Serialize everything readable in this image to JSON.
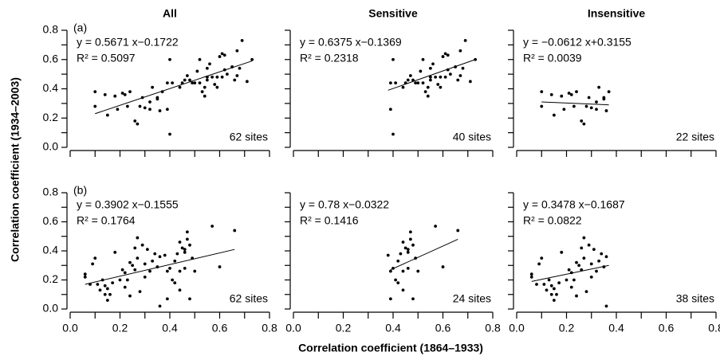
{
  "figure": {
    "xlabel": "Correlation coefficient (1864–1933)",
    "ylabel": "Correlation coefficient (1934–2003)"
  },
  "chart_data": [
    {
      "type": "scatter",
      "title": "All",
      "panel_label": "(a)",
      "color": "#000000",
      "x": [
        0.1,
        0.1,
        0.14,
        0.15,
        0.18,
        0.19,
        0.21,
        0.22,
        0.23,
        0.24,
        0.26,
        0.27,
        0.29,
        0.28,
        0.3,
        0.32,
        0.32,
        0.33,
        0.35,
        0.35,
        0.37,
        0.36,
        0.4,
        0.39,
        0.39,
        0.4,
        0.41,
        0.44,
        0.45,
        0.46,
        0.47,
        0.48,
        0.49,
        0.5,
        0.51,
        0.52,
        0.52,
        0.53,
        0.54,
        0.54,
        0.55,
        0.55,
        0.55,
        0.56,
        0.57,
        0.58,
        0.59,
        0.59,
        0.6,
        0.61,
        0.61,
        0.62,
        0.62,
        0.63,
        0.65,
        0.66,
        0.67,
        0.67,
        0.68,
        0.69,
        0.71,
        0.73
      ],
      "y": [
        0.38,
        0.28,
        0.36,
        0.22,
        0.35,
        0.26,
        0.37,
        0.36,
        0.28,
        0.38,
        0.18,
        0.16,
        0.34,
        0.28,
        0.27,
        0.31,
        0.26,
        0.41,
        0.33,
        0.34,
        0.38,
        0.25,
        0.09,
        0.26,
        0.44,
        0.6,
        0.44,
        0.41,
        0.44,
        0.46,
        0.49,
        0.46,
        0.44,
        0.44,
        0.52,
        0.6,
        0.44,
        0.38,
        0.41,
        0.35,
        0.54,
        0.48,
        0.46,
        0.57,
        0.48,
        0.43,
        0.41,
        0.48,
        0.62,
        0.64,
        0.48,
        0.53,
        0.63,
        0.5,
        0.55,
        0.46,
        0.66,
        0.49,
        0.54,
        0.73,
        0.45,
        0.6
      ],
      "fit": {
        "x": [
          0.1,
          0.73
        ],
        "y": [
          0.23,
          0.59
        ]
      },
      "equation": "y = 0.5671 x−0.1722",
      "r_squared": "R² = 0.5097",
      "annotation": "62 sites",
      "xlim": [
        0,
        0.8
      ],
      "ylim": [
        0,
        0.8
      ],
      "xticks": [
        0,
        0.2,
        0.4,
        0.6,
        0.8
      ],
      "yticks": [
        {
          "value": 0,
          "label": "0.0"
        },
        {
          "value": 0.2,
          "label": "0.2"
        },
        {
          "value": 0.4,
          "label": "0.4"
        },
        {
          "value": 0.6,
          "label": "0.6"
        },
        {
          "value": 0.8,
          "label": "0.8"
        }
      ],
      "xminor": [
        0.1,
        0.3,
        0.5,
        0.7
      ],
      "yminor": [
        0.1,
        0.3,
        0.5,
        0.7
      ]
    },
    {
      "type": "scatter",
      "title": "Sensitive",
      "color": "#000000",
      "x": [
        0.4,
        0.39,
        0.39,
        0.4,
        0.41,
        0.44,
        0.45,
        0.46,
        0.47,
        0.48,
        0.49,
        0.5,
        0.51,
        0.52,
        0.52,
        0.53,
        0.54,
        0.54,
        0.55,
        0.55,
        0.55,
        0.56,
        0.57,
        0.58,
        0.59,
        0.59,
        0.6,
        0.61,
        0.61,
        0.62,
        0.62,
        0.63,
        0.65,
        0.66,
        0.67,
        0.67,
        0.68,
        0.69,
        0.71,
        0.73
      ],
      "y": [
        0.09,
        0.26,
        0.44,
        0.6,
        0.44,
        0.41,
        0.44,
        0.46,
        0.49,
        0.46,
        0.44,
        0.44,
        0.52,
        0.6,
        0.44,
        0.38,
        0.41,
        0.35,
        0.54,
        0.48,
        0.46,
        0.57,
        0.48,
        0.43,
        0.41,
        0.48,
        0.62,
        0.64,
        0.48,
        0.53,
        0.63,
        0.5,
        0.55,
        0.46,
        0.66,
        0.49,
        0.54,
        0.73,
        0.45,
        0.6
      ],
      "fit": {
        "x": [
          0.38,
          0.73
        ],
        "y": [
          0.39,
          0.6
        ]
      },
      "equation": "y = 0.6375 x−0.1369",
      "r_squared": "R² = 0.2318",
      "annotation": "40 sites",
      "xlim": [
        0,
        0.8
      ],
      "ylim": [
        0,
        0.8
      ],
      "xticks": [
        0,
        0.2,
        0.4,
        0.6,
        0.8
      ],
      "yticks": [
        0,
        0.2,
        0.4,
        0.6,
        0.8
      ],
      "xminor": [
        0.1,
        0.3,
        0.5,
        0.7
      ],
      "yminor": [
        0.1,
        0.3,
        0.5,
        0.7
      ]
    },
    {
      "type": "scatter",
      "title": "Insensitive",
      "color": "#000000",
      "x": [
        0.1,
        0.1,
        0.14,
        0.15,
        0.18,
        0.19,
        0.21,
        0.22,
        0.23,
        0.24,
        0.26,
        0.27,
        0.29,
        0.28,
        0.3,
        0.32,
        0.32,
        0.33,
        0.35,
        0.35,
        0.37,
        0.36
      ],
      "y": [
        0.38,
        0.28,
        0.36,
        0.22,
        0.35,
        0.26,
        0.37,
        0.36,
        0.28,
        0.38,
        0.18,
        0.16,
        0.34,
        0.28,
        0.27,
        0.31,
        0.26,
        0.41,
        0.33,
        0.34,
        0.38,
        0.25
      ],
      "fit": {
        "x": [
          0.1,
          0.37
        ],
        "y": [
          0.31,
          0.29
        ]
      },
      "equation": "y = −0.0612 x+0.3155",
      "r_squared": "R² = 0.0039",
      "annotation": "22 sites",
      "xlim": [
        0,
        0.8
      ],
      "ylim": [
        0,
        0.8
      ],
      "xticks": [
        0,
        0.2,
        0.4,
        0.6,
        0.8
      ],
      "yticks": [
        0,
        0.2,
        0.4,
        0.6,
        0.8
      ],
      "xminor": [
        0.1,
        0.3,
        0.5,
        0.7
      ],
      "yminor": [
        0.1,
        0.3,
        0.5,
        0.7
      ]
    },
    {
      "type": "scatter",
      "panel_label": "(b)",
      "color": "#000000",
      "x": [
        0.06,
        0.06,
        0.08,
        0.09,
        0.1,
        0.11,
        0.12,
        0.13,
        0.14,
        0.14,
        0.15,
        0.15,
        0.16,
        0.17,
        0.18,
        0.2,
        0.21,
        0.22,
        0.22,
        0.23,
        0.24,
        0.24,
        0.25,
        0.26,
        0.26,
        0.27,
        0.27,
        0.28,
        0.29,
        0.3,
        0.3,
        0.31,
        0.32,
        0.33,
        0.34,
        0.35,
        0.36,
        0.36,
        0.38,
        0.39,
        0.39,
        0.4,
        0.41,
        0.42,
        0.42,
        0.43,
        0.44,
        0.44,
        0.45,
        0.46,
        0.46,
        0.46,
        0.47,
        0.47,
        0.48,
        0.48,
        0.49,
        0.5,
        0.57,
        0.6,
        0.44,
        0.66
      ],
      "y": [
        0.24,
        0.22,
        0.17,
        0.31,
        0.35,
        0.17,
        0.13,
        0.2,
        0.1,
        0.16,
        0.06,
        0.14,
        0.1,
        0.18,
        0.39,
        0.2,
        0.27,
        0.15,
        0.25,
        0.2,
        0.09,
        0.32,
        0.3,
        0.42,
        0.27,
        0.49,
        0.35,
        0.12,
        0.44,
        0.22,
        0.31,
        0.41,
        0.26,
        0.33,
        0.38,
        0.29,
        0.02,
        0.36,
        0.37,
        0.26,
        0.07,
        0.28,
        0.2,
        0.33,
        0.18,
        0.38,
        0.46,
        0.13,
        0.42,
        0.41,
        0.39,
        0.28,
        0.53,
        0.48,
        0.44,
        0.07,
        0.35,
        0.26,
        0.57,
        0.29,
        0.26,
        0.54
      ],
      "fit": {
        "x": [
          0.06,
          0.66
        ],
        "y": [
          0.17,
          0.41
        ]
      },
      "equation": "y = 0.3902 x−0.1555",
      "r_squared": "R² = 0.1764",
      "annotation": "62 sites",
      "xlim": [
        0,
        0.8
      ],
      "ylim": [
        0,
        0.8
      ],
      "xticks": [
        {
          "value": 0,
          "label": "0.0"
        },
        {
          "value": 0.2,
          "label": "0.2"
        },
        {
          "value": 0.4,
          "label": "0.4"
        },
        {
          "value": 0.6,
          "label": "0.6"
        },
        {
          "value": 0.8,
          "label": "0.8"
        }
      ],
      "yticks": [
        {
          "value": 0,
          "label": "0.0"
        },
        {
          "value": 0.2,
          "label": "0.2"
        },
        {
          "value": 0.4,
          "label": "0.4"
        },
        {
          "value": 0.6,
          "label": "0.6"
        },
        {
          "value": 0.8,
          "label": "0.8"
        }
      ],
      "xminor": [
        0.1,
        0.3,
        0.5,
        0.7
      ],
      "yminor": [
        0.1,
        0.3,
        0.5,
        0.7
      ]
    },
    {
      "type": "scatter",
      "color": "#000000",
      "x": [
        0.38,
        0.39,
        0.39,
        0.4,
        0.41,
        0.42,
        0.42,
        0.43,
        0.44,
        0.44,
        0.45,
        0.46,
        0.46,
        0.46,
        0.47,
        0.47,
        0.48,
        0.48,
        0.49,
        0.5,
        0.57,
        0.6,
        0.44,
        0.66
      ],
      "y": [
        0.37,
        0.26,
        0.07,
        0.28,
        0.2,
        0.33,
        0.18,
        0.38,
        0.46,
        0.13,
        0.42,
        0.41,
        0.39,
        0.28,
        0.53,
        0.48,
        0.44,
        0.07,
        0.35,
        0.26,
        0.57,
        0.29,
        0.26,
        0.54
      ],
      "fit": {
        "x": [
          0.39,
          0.66
        ],
        "y": [
          0.27,
          0.48
        ]
      },
      "equation": "y = 0.78 x−0.0322",
      "r_squared": "R² = 0.1416",
      "annotation": "24 sites",
      "xlim": [
        0,
        0.8
      ],
      "ylim": [
        0,
        0.8
      ],
      "xticks": [
        {
          "value": 0,
          "label": "0.0"
        },
        {
          "value": 0.2,
          "label": "0.2"
        },
        {
          "value": 0.4,
          "label": "0.4"
        },
        {
          "value": 0.6,
          "label": "0.6"
        },
        {
          "value": 0.8,
          "label": "0.8"
        }
      ],
      "yticks": [
        0,
        0.2,
        0.4,
        0.6,
        0.8
      ],
      "xminor": [
        0.1,
        0.3,
        0.5,
        0.7
      ],
      "yminor": [
        0.1,
        0.3,
        0.5,
        0.7
      ]
    },
    {
      "type": "scatter",
      "color": "#000000",
      "x": [
        0.06,
        0.06,
        0.08,
        0.09,
        0.1,
        0.11,
        0.12,
        0.13,
        0.14,
        0.14,
        0.15,
        0.15,
        0.16,
        0.17,
        0.18,
        0.2,
        0.21,
        0.22,
        0.22,
        0.23,
        0.24,
        0.24,
        0.25,
        0.26,
        0.26,
        0.27,
        0.27,
        0.28,
        0.29,
        0.3,
        0.3,
        0.31,
        0.32,
        0.33,
        0.34,
        0.35,
        0.36,
        0.36
      ],
      "y": [
        0.24,
        0.22,
        0.17,
        0.31,
        0.35,
        0.17,
        0.13,
        0.2,
        0.1,
        0.16,
        0.06,
        0.14,
        0.1,
        0.18,
        0.39,
        0.2,
        0.27,
        0.15,
        0.25,
        0.2,
        0.09,
        0.32,
        0.3,
        0.42,
        0.27,
        0.49,
        0.35,
        0.12,
        0.44,
        0.22,
        0.31,
        0.41,
        0.26,
        0.33,
        0.38,
        0.29,
        0.02,
        0.36
      ],
      "fit": {
        "x": [
          0.06,
          0.37
        ],
        "y": [
          0.19,
          0.3
        ]
      },
      "equation": "y = 0.3478 x−0.1687",
      "r_squared": "R² = 0.0822",
      "annotation": "38 sites",
      "xlim": [
        0,
        0.8
      ],
      "ylim": [
        0,
        0.8
      ],
      "xticks": [
        {
          "value": 0,
          "label": "0.0"
        },
        {
          "value": 0.2,
          "label": "0.2"
        },
        {
          "value": 0.4,
          "label": "0.4"
        },
        {
          "value": 0.6,
          "label": "0.6"
        },
        {
          "value": 0.8,
          "label": "0.8"
        }
      ],
      "yticks": [
        0,
        0.2,
        0.4,
        0.6,
        0.8
      ],
      "xminor": [
        0.1,
        0.3,
        0.5,
        0.7
      ],
      "yminor": [
        0.1,
        0.3,
        0.5,
        0.7
      ]
    }
  ]
}
